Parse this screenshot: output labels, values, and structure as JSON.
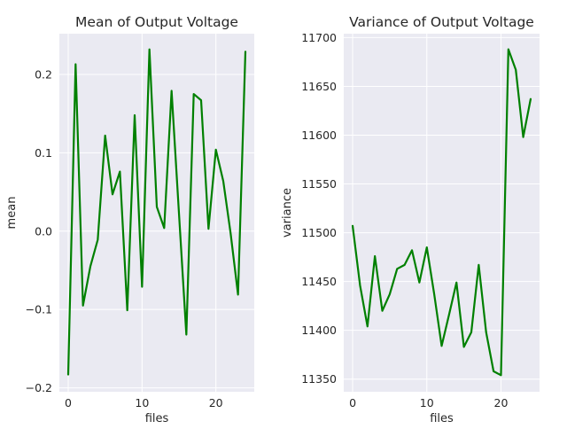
{
  "chart_data": [
    {
      "type": "line",
      "title": "Mean of Output Voltage",
      "xlabel": "files",
      "ylabel": "mean",
      "xlim": [
        -1.2,
        25.2
      ],
      "ylim": [
        -0.205,
        0.252
      ],
      "xticks": [
        0,
        10,
        20
      ],
      "xtick_labels": [
        "0",
        "10",
        "20"
      ],
      "yticks": [
        -0.2,
        -0.1,
        0.0,
        0.1,
        0.2
      ],
      "ytick_labels": [
        "−0.2",
        "−0.1",
        "0.0",
        "0.1",
        "0.2"
      ],
      "grid": true,
      "series": [
        {
          "color": "#008000",
          "x": [
            0,
            1,
            2,
            3,
            4,
            5,
            6,
            7,
            8,
            9,
            10,
            11,
            12,
            13,
            14,
            15,
            16,
            17,
            18,
            19,
            20,
            21,
            22,
            23,
            24
          ],
          "y": [
            -0.183,
            0.213,
            -0.095,
            -0.045,
            -0.011,
            0.122,
            0.047,
            0.076,
            -0.101,
            0.148,
            -0.071,
            0.232,
            0.031,
            0.004,
            0.179,
            0.023,
            -0.132,
            0.175,
            0.167,
            0.003,
            0.104,
            0.064,
            -0.003,
            -0.081,
            0.229
          ]
        }
      ]
    },
    {
      "type": "line",
      "title": "Variance of Output Voltage",
      "xlabel": "files",
      "ylabel": "variance",
      "xlim": [
        -1.2,
        25.2
      ],
      "ylim": [
        11337,
        11704
      ],
      "xticks": [
        0,
        10,
        20
      ],
      "xtick_labels": [
        "0",
        "10",
        "20"
      ],
      "yticks": [
        11350,
        11400,
        11450,
        11500,
        11550,
        11600,
        11650,
        11700
      ],
      "ytick_labels": [
        "11350",
        "11400",
        "11450",
        "11500",
        "11550",
        "11600",
        "11650",
        "11700"
      ],
      "grid": true,
      "series": [
        {
          "color": "#008000",
          "x": [
            0,
            1,
            2,
            3,
            4,
            5,
            6,
            7,
            8,
            9,
            10,
            11,
            12,
            13,
            14,
            15,
            16,
            17,
            18,
            19,
            20,
            21,
            22,
            23,
            24
          ],
          "y": [
            11507,
            11446,
            11404,
            11476,
            11420,
            11437,
            11463,
            11467,
            11482,
            11449,
            11485,
            11437,
            11384,
            11416,
            11449,
            11383,
            11398,
            11467,
            11398,
            11358,
            11354,
            11688,
            11667,
            11598,
            11637
          ]
        }
      ]
    }
  ]
}
